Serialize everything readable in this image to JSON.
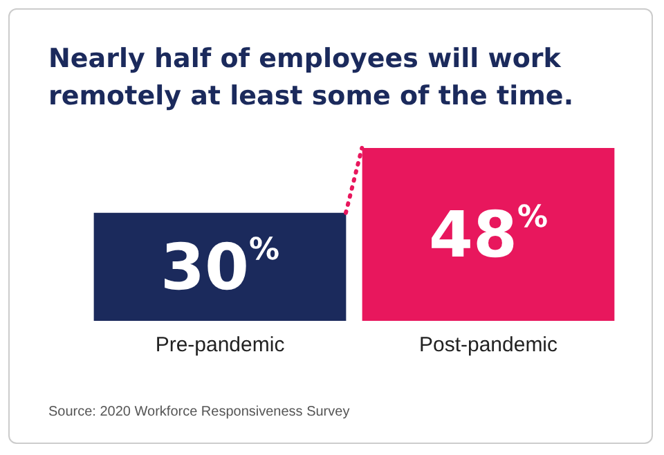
{
  "chart_data": {
    "type": "bar",
    "title": "Nearly half of employees will work\nremotely at least some of the time.",
    "categories": [
      "Pre-pandemic",
      "Post-pandemic"
    ],
    "values": [
      30,
      48
    ],
    "colors": [
      "#1b2a5c",
      "#e8175d"
    ],
    "value_labels": [
      "30%",
      "48%"
    ],
    "annotations": [
      "Source: 2020 Workforce Responsiveness Survey"
    ]
  }
}
